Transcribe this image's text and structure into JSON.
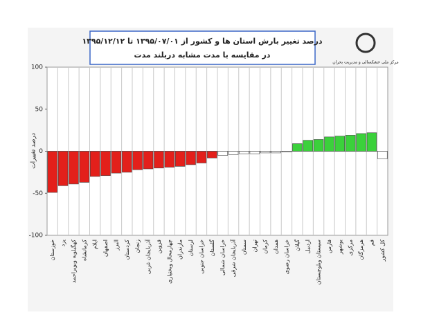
{
  "chart_data": {
    "type": "bar",
    "title": "درصد تغییر بارش استان ها و کشور از ۱۳۹۵/۰۷/۰۱ تا ۱۳۹۵/۱۲/۱۲",
    "subtitle": "در مقایسه با مدت مشابه دربلند مدت",
    "source": "مرکز ملی خشکسالی و مدیریت بحران",
    "y_label": "درصد تغییرات",
    "categories": [
      "خوزستان",
      "یزد",
      "کهگیلویه وبویراحمد",
      "کرمانشاه",
      "ایلام",
      "اصفهان",
      "البرز",
      "کردستان",
      "زنجان",
      "آذربایجان غربی",
      "قزوین",
      "چهارمحال وبختیاری",
      "مازندران",
      "لرستان",
      "خراسان جنوبی",
      "گلستان",
      "خراسان شمالی",
      "آذربایجان شرقی",
      "سمنان",
      "تهران",
      "کرمان",
      "همدان",
      "خراسان رضوی",
      "گیلان",
      "اردبیل",
      "سیستان وبلوچستان",
      "فارس",
      "بوشهر",
      "مرکزی",
      "هرمزگان",
      "قم",
      "کل کشور"
    ],
    "values": [
      -49,
      -41,
      -39,
      -37,
      -30,
      -29,
      -26,
      -25,
      -22,
      -21,
      -20,
      -19,
      -18,
      -16,
      -14,
      -8,
      -5,
      -4,
      -3,
      -3,
      -2,
      -2,
      -1,
      9,
      13,
      14,
      17,
      18,
      19,
      21,
      22,
      -9
    ],
    "colors": [
      "#e3201b",
      "#e3201b",
      "#e3201b",
      "#e3201b",
      "#e3201b",
      "#e3201b",
      "#e3201b",
      "#e3201b",
      "#e3201b",
      "#e3201b",
      "#e3201b",
      "#e3201b",
      "#e3201b",
      "#e3201b",
      "#e3201b",
      "#e3201b",
      "#ffffff",
      "#ffffff",
      "#ffffff",
      "#ffffff",
      "#ffffff",
      "#ffffff",
      "#ffffff",
      "#3bd13b",
      "#3bd13b",
      "#3bd13b",
      "#3bd13b",
      "#3bd13b",
      "#3bd13b",
      "#3bd13b",
      "#3bd13b",
      "#ffffff"
    ],
    "ylim": [
      -100,
      100
    ],
    "yticks": [
      -100,
      -50,
      0,
      50,
      100
    ],
    "grid": true
  }
}
